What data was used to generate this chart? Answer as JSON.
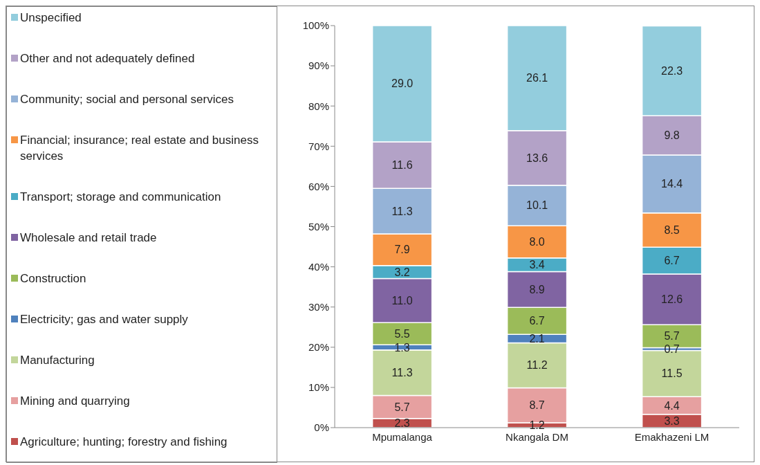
{
  "chart_data": {
    "type": "bar",
    "stacked": true,
    "categories": [
      "Mpumalanga",
      "Nkangala DM",
      "Emakhazeni LM"
    ],
    "ylim": [
      0,
      100
    ],
    "yticks": [
      {
        "value": 0,
        "label": "0%"
      },
      {
        "value": 10,
        "label": "10%"
      },
      {
        "value": 20,
        "label": "20%"
      },
      {
        "value": 30,
        "label": "30%"
      },
      {
        "value": 40,
        "label": "40%"
      },
      {
        "value": 50,
        "label": "50%"
      },
      {
        "value": 60,
        "label": "60%"
      },
      {
        "value": 70,
        "label": "70%"
      },
      {
        "value": 80,
        "label": "80%"
      },
      {
        "value": 90,
        "label": "90%"
      },
      {
        "value": 100,
        "label": "100%"
      }
    ],
    "legend": "left",
    "grid": false,
    "series": [
      {
        "name": "Agriculture; hunting; forestry and fishing",
        "color": "#c0504d",
        "values": [
          2.3,
          1.2,
          3.3
        ],
        "value_labels": [
          "2.3",
          "1.2",
          "3.3"
        ]
      },
      {
        "name": "Mining and quarrying",
        "color": "#e6a0a0",
        "values": [
          5.7,
          8.7,
          4.4
        ],
        "value_labels": [
          "5.7",
          "8.7",
          "4.4"
        ]
      },
      {
        "name": "Manufacturing",
        "color": "#c3d69b",
        "values": [
          11.3,
          11.2,
          11.5
        ],
        "value_labels": [
          "11.3",
          "11.2",
          "11.5"
        ]
      },
      {
        "name": "Electricity; gas and water supply",
        "color": "#4f81bd",
        "values": [
          1.3,
          2.1,
          0.7
        ],
        "value_labels": [
          "1.3",
          "2.1",
          "0.7"
        ]
      },
      {
        "name": "Construction",
        "color": "#9bbb59",
        "values": [
          5.5,
          6.7,
          5.7
        ],
        "value_labels": [
          "5.5",
          "6.7",
          "5.7"
        ]
      },
      {
        "name": "Wholesale and retail trade",
        "color": "#8064a2",
        "values": [
          11.0,
          8.9,
          12.6
        ],
        "value_labels": [
          "11.0",
          "8.9",
          "12.6"
        ]
      },
      {
        "name": "Transport; storage and communication",
        "color": "#4bacc6",
        "values": [
          3.2,
          3.4,
          6.7
        ],
        "value_labels": [
          "3.2",
          "3.4",
          "6.7"
        ]
      },
      {
        "name": "Financial; insurance; real estate and business services",
        "color": "#f79646",
        "values": [
          7.9,
          8.0,
          8.5
        ],
        "value_labels": [
          "7.9",
          "8.0",
          "8.5"
        ]
      },
      {
        "name": "Community; social and personal services",
        "color": "#95b3d7",
        "values": [
          11.3,
          10.1,
          14.4
        ],
        "value_labels": [
          "11.3",
          "10.1",
          "14.4"
        ]
      },
      {
        "name": "Other and not adequately defined",
        "color": "#b3a2c7",
        "values": [
          11.6,
          13.6,
          9.8
        ],
        "value_labels": [
          "11.6",
          "13.6",
          "9.8"
        ]
      },
      {
        "name": "Unspecified",
        "color": "#93cddd",
        "values": [
          29.0,
          26.1,
          22.3
        ],
        "value_labels": [
          "29.0",
          "26.1",
          "22.3"
        ]
      }
    ]
  }
}
